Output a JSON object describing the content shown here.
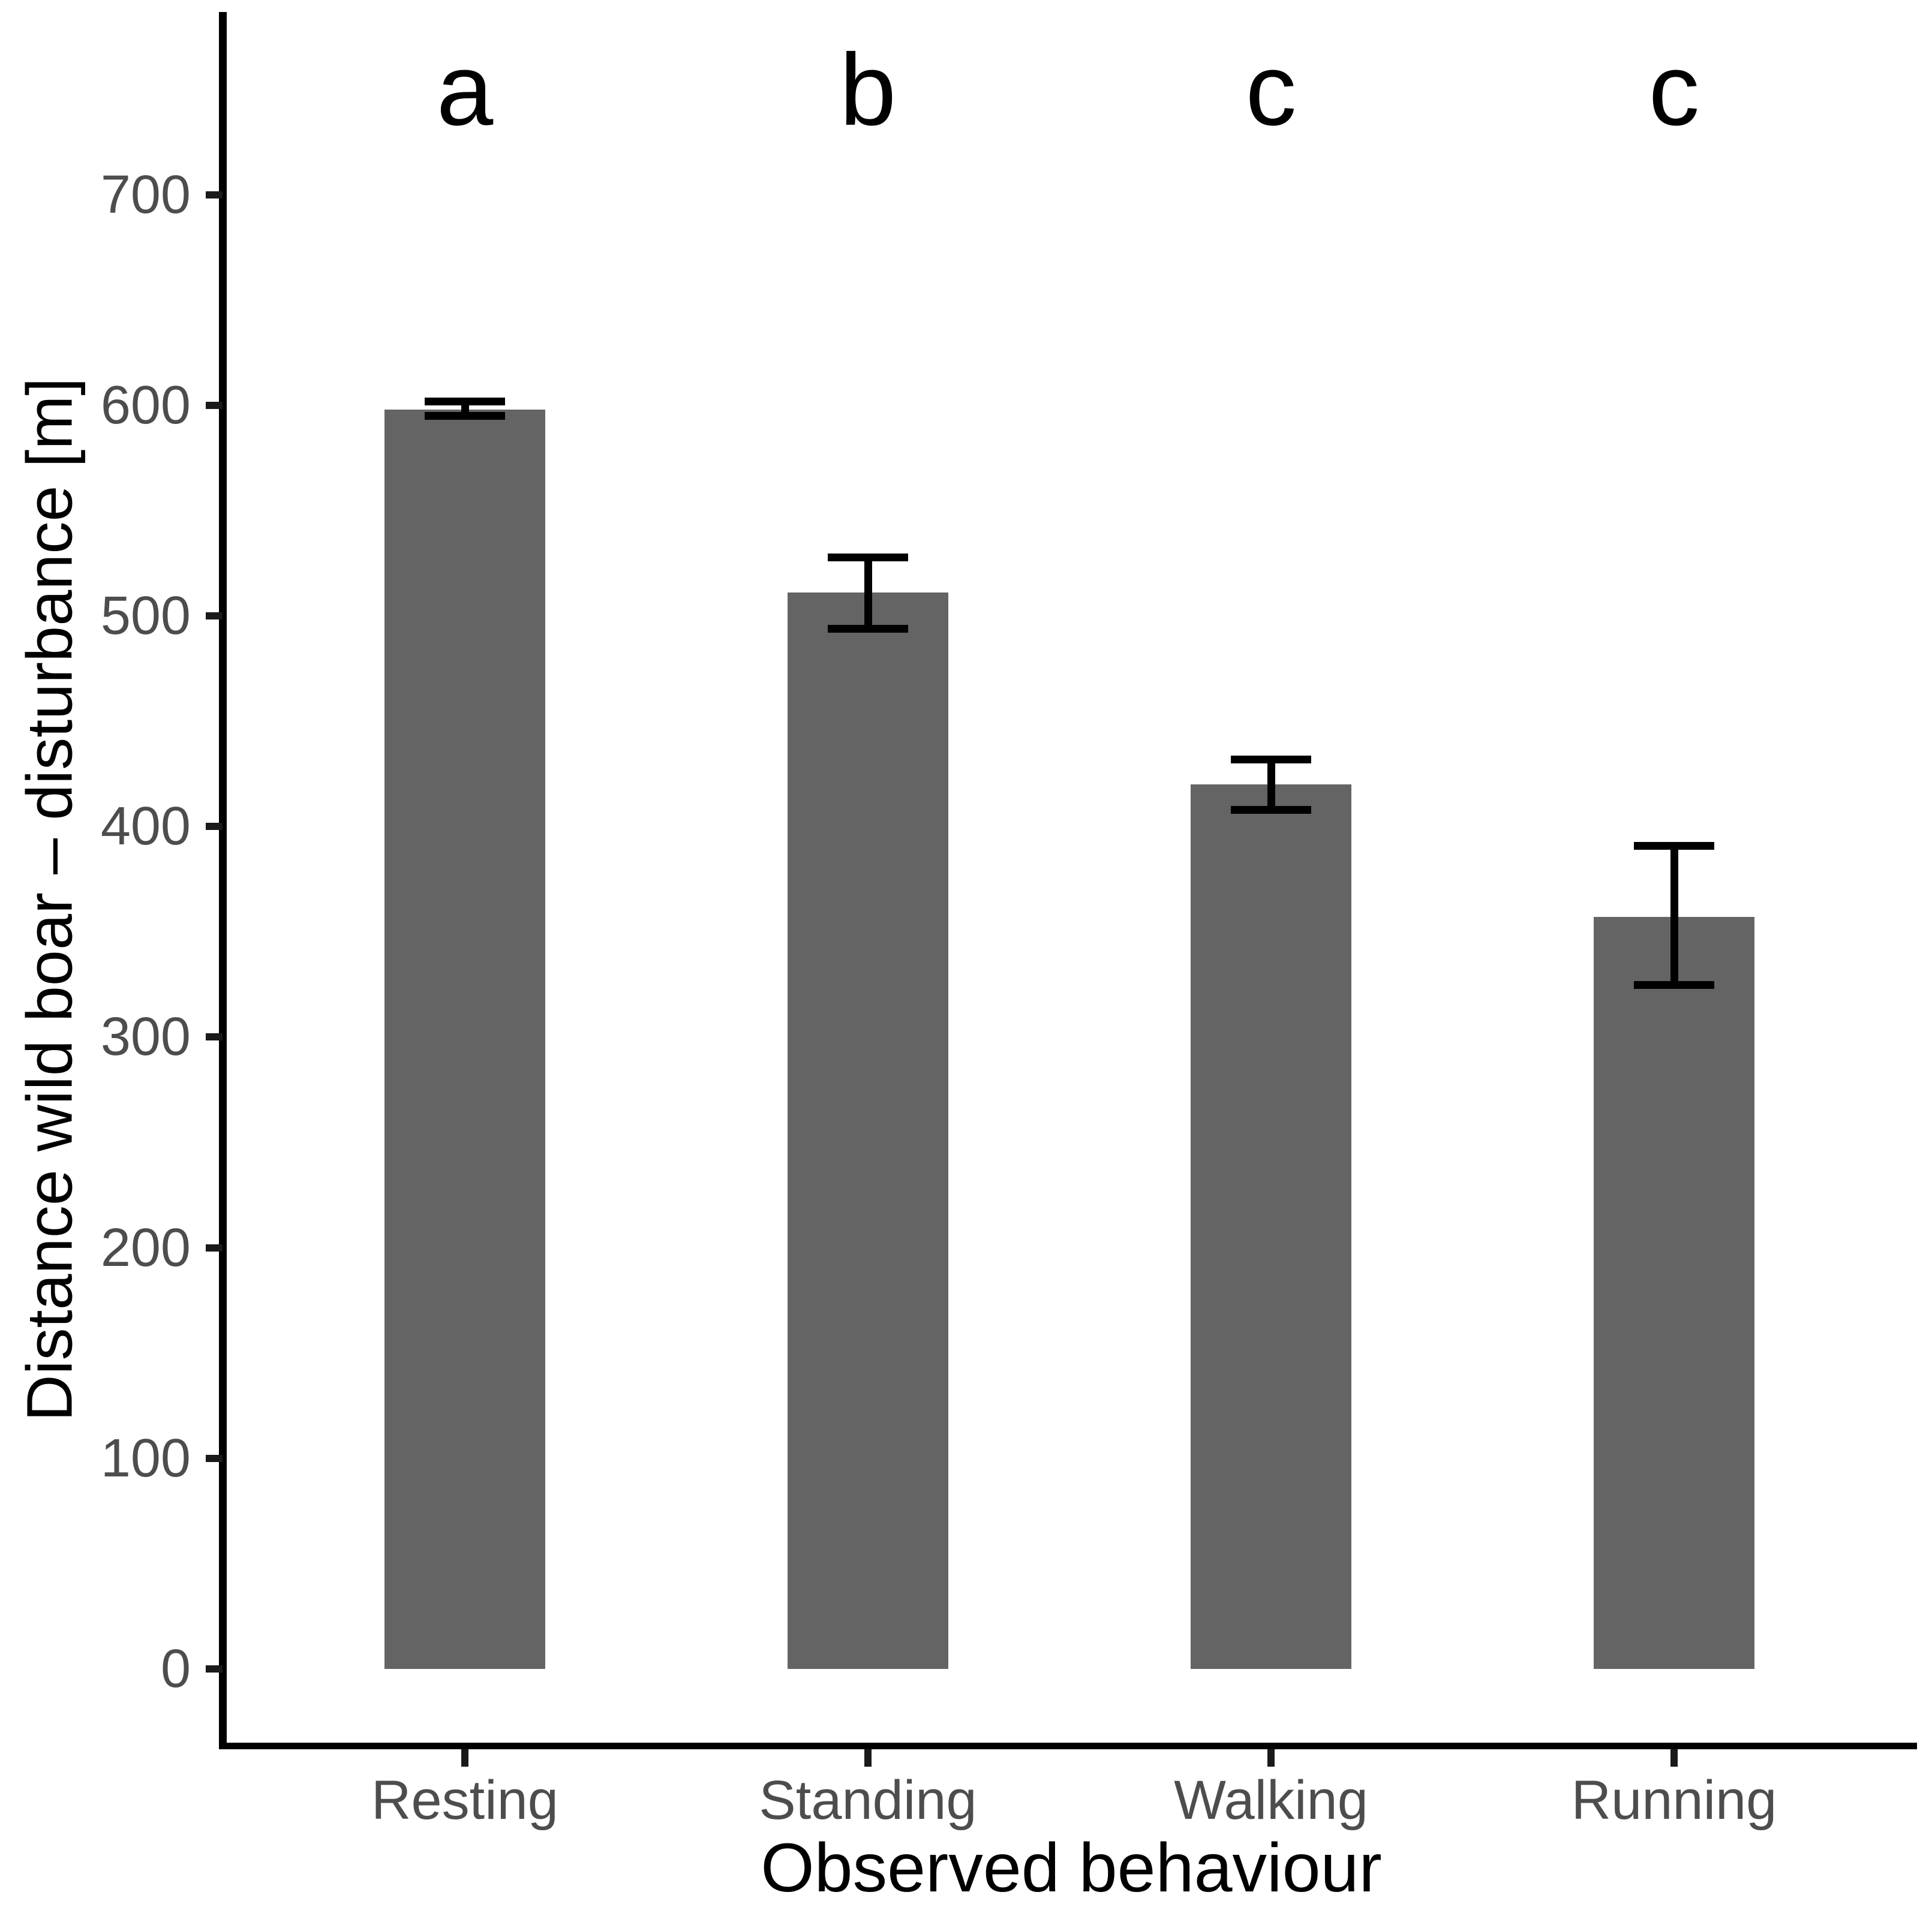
{
  "chart_data": {
    "type": "bar",
    "title": "",
    "xlabel": "Observed behaviour",
    "ylabel": "Distance wild boar – disturbance [m]",
    "categories": [
      "Resting",
      "Standing",
      "Walking",
      "Running"
    ],
    "values": [
      598,
      511,
      420,
      357
    ],
    "error_bars": {
      "ci_lower": [
        595,
        494,
        408,
        325
      ],
      "ci_upper": [
        602,
        528,
        432,
        391
      ]
    },
    "significance_letters": [
      "a",
      "b",
      "c",
      "c"
    ],
    "yticks": [
      0,
      100,
      200,
      300,
      400,
      500,
      600,
      700
    ],
    "ylim": [
      0,
      780
    ],
    "grid": false,
    "legend": "none",
    "colors": {
      "bar_fill": "#646464",
      "axis_line": "#000000",
      "tick_mark": "#1a1a1a",
      "tick_label": "#4d4d4d",
      "axis_title": "#000000",
      "significance_letter": "#000000",
      "error_bar": "#000000",
      "background": "#ffffff"
    }
  }
}
